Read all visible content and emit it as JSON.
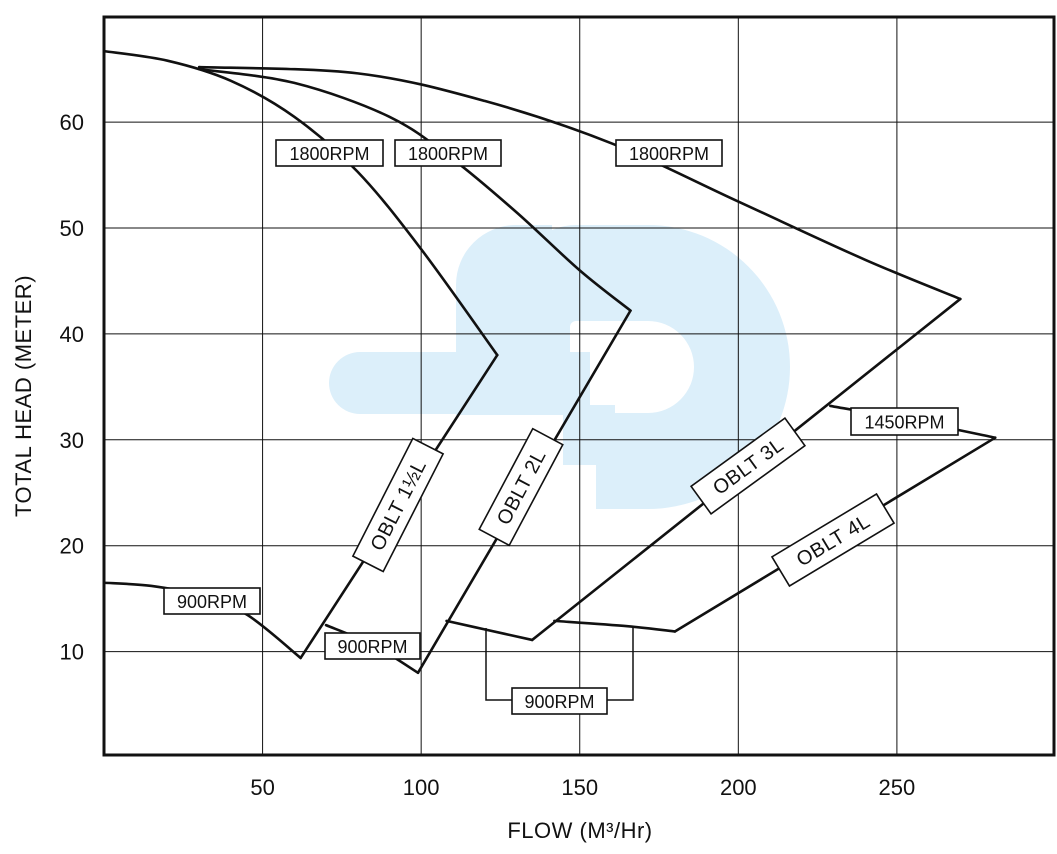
{
  "chart_data": {
    "type": "line",
    "title": "",
    "xlabel": "FLOW (M³/Hr)",
    "ylabel": "TOTAL HEAD (METER)",
    "xlim": [
      0,
      300
    ],
    "ylim": [
      0,
      70
    ],
    "x_ticks": [
      50,
      100,
      150,
      200,
      250
    ],
    "y_ticks": [
      10,
      20,
      30,
      40,
      50,
      60
    ],
    "grid": true,
    "colors": {
      "line": "#111111",
      "watermark": "#dceffa",
      "background": "#ffffff"
    },
    "series": [
      {
        "name": "1800RPM",
        "model": "OBLT 1½L",
        "x": [
          0,
          20,
          40,
          60,
          80,
          100,
          124
        ],
        "y": [
          66.7,
          65.8,
          63.9,
          60.5,
          55.3,
          48.0,
          38.0
        ]
      },
      {
        "name": "1800RPM",
        "model": "OBLT 2L",
        "x": [
          30,
          60,
          90,
          110,
          130,
          150,
          166
        ],
        "y": [
          65.0,
          63.7,
          60.5,
          56.5,
          51.5,
          46.0,
          42.2
        ]
      },
      {
        "name": "1800RPM",
        "model": "OBLT 3L",
        "x": [
          30,
          80,
          120,
          160,
          200,
          240,
          270
        ],
        "y": [
          65.2,
          64.6,
          62.0,
          58.0,
          52.5,
          47.0,
          43.3
        ]
      },
      {
        "name": "1450RPM",
        "model": "OBLT 4L",
        "x": [
          229,
          255,
          281
        ],
        "y": [
          33.2,
          31.8,
          30.2
        ]
      },
      {
        "name": "900RPM",
        "model": "OBLT 1½L",
        "x": [
          0,
          15,
          30,
          45,
          62
        ],
        "y": [
          16.5,
          16.2,
          15.3,
          13.5,
          9.4
        ]
      },
      {
        "name": "900RPM",
        "model": "OBLT 2L",
        "x": [
          70,
          85,
          99
        ],
        "y": [
          12.5,
          10.6,
          8.0
        ]
      },
      {
        "name": "900RPM",
        "model": "OBLT 3L",
        "x": [
          108,
          120,
          135
        ],
        "y": [
          12.9,
          12.1,
          11.1
        ]
      },
      {
        "name": "900RPM",
        "model": "OBLT 4L",
        "x": [
          142,
          165,
          180
        ],
        "y": [
          12.9,
          12.4,
          11.9
        ]
      }
    ],
    "operating_boundaries": [
      {
        "model": "OBLT 1½L",
        "from": [
          62,
          9.4
        ],
        "to": [
          124,
          38.0
        ]
      },
      {
        "model": "OBLT 2L",
        "from": [
          99,
          8.0
        ],
        "to": [
          166,
          42.2
        ]
      },
      {
        "model": "OBLT 3L",
        "from": [
          135,
          11.1
        ],
        "to": [
          270,
          43.3
        ]
      },
      {
        "model": "OBLT 4L",
        "from": [
          180,
          11.9
        ],
        "to": [
          281,
          30.2
        ]
      }
    ],
    "labels": {
      "rpm_1800_a": "1800RPM",
      "rpm_1800_b": "1800RPM",
      "rpm_1800_c": "1800RPM",
      "rpm_1450": "1450RPM",
      "rpm_900_a": "900RPM",
      "rpm_900_b": "900RPM",
      "rpm_900_c": "900RPM",
      "model_1": "OBLT 1½L",
      "model_2": "OBLT 2L",
      "model_3": "OBLT 3L",
      "model_4": "OBLT 4L"
    }
  }
}
